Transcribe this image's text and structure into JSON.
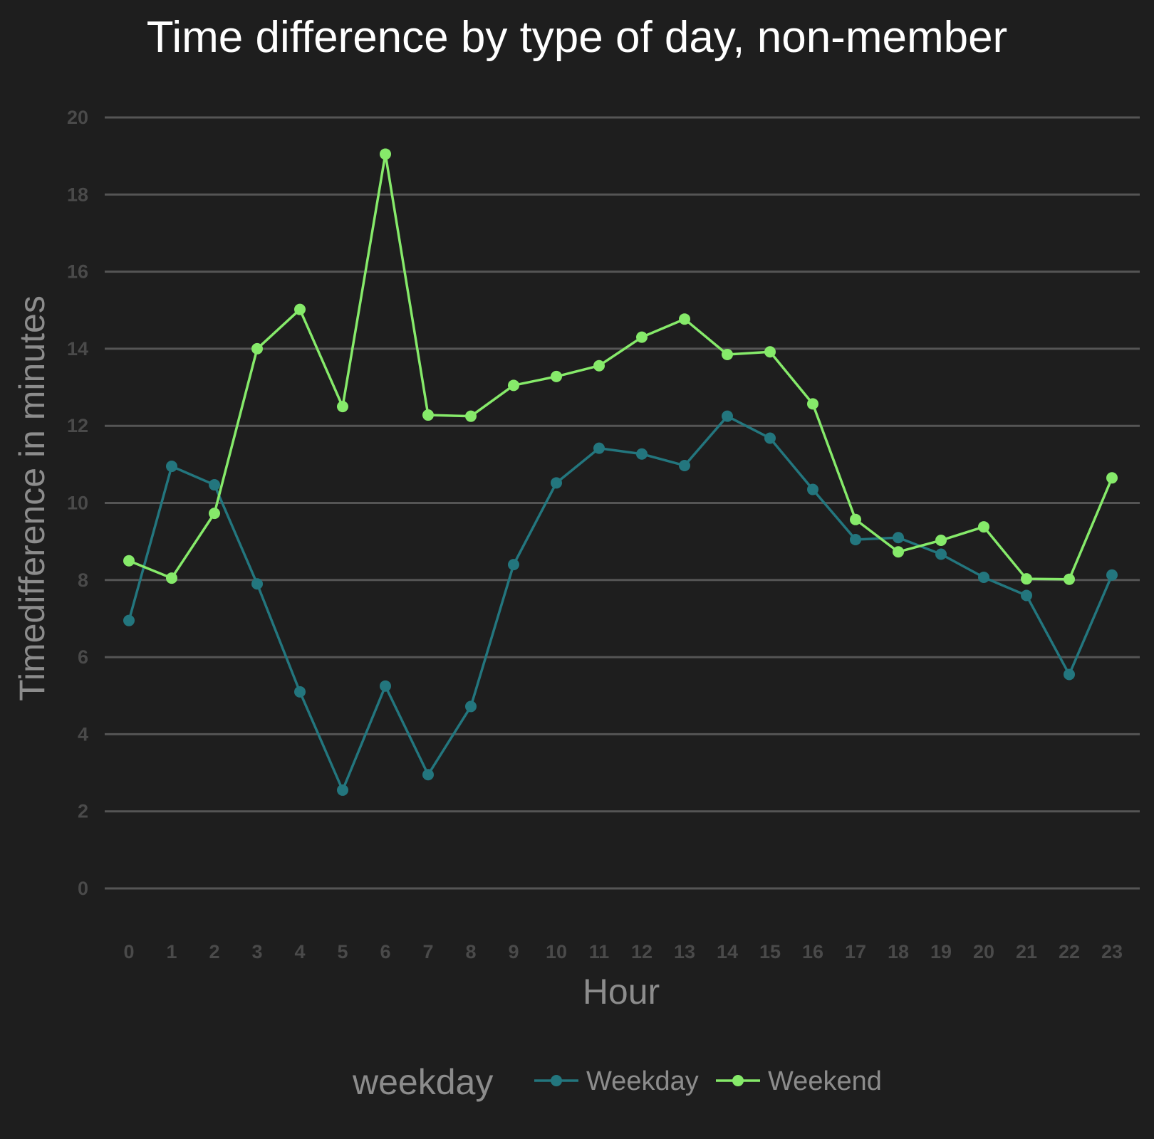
{
  "chart_data": {
    "type": "line",
    "title": "Time difference by type of day, non-member",
    "xlabel": "Hour",
    "ylabel": "Timedifference in minutes",
    "x": [
      0,
      1,
      2,
      3,
      4,
      5,
      6,
      7,
      8,
      9,
      10,
      11,
      12,
      13,
      14,
      15,
      16,
      17,
      18,
      19,
      20,
      21,
      22,
      23
    ],
    "x_tick_labels": [
      "0",
      "1",
      "2",
      "3",
      "4",
      "5",
      "6",
      "7",
      "8",
      "9",
      "10",
      "11",
      "12",
      "13",
      "14",
      "15",
      "16",
      "17",
      "18",
      "19",
      "20",
      "21",
      "22",
      "23"
    ],
    "ylim": [
      0,
      20
    ],
    "y_ticks": [
      0,
      2,
      4,
      6,
      8,
      10,
      12,
      14,
      16,
      18,
      20
    ],
    "y_tick_labels": [
      "0",
      "2",
      "4",
      "6",
      "8",
      "10",
      "12",
      "14",
      "16",
      "18",
      "20"
    ],
    "grid": true,
    "legend": {
      "title": "weekday",
      "position": "bottom"
    },
    "series": [
      {
        "name": "Weekday",
        "color": "#23767e",
        "values": [
          6.95,
          10.95,
          10.47,
          7.9,
          5.1,
          2.55,
          5.25,
          2.95,
          4.72,
          8.4,
          10.52,
          11.42,
          11.27,
          10.97,
          12.25,
          11.68,
          10.35,
          9.05,
          9.1,
          8.67,
          8.07,
          7.6,
          5.55,
          8.13
        ]
      },
      {
        "name": "Weekend",
        "color": "#86ea6a",
        "values": [
          8.5,
          8.05,
          9.73,
          14.0,
          15.02,
          12.5,
          19.05,
          12.28,
          12.25,
          13.05,
          13.28,
          13.56,
          14.3,
          14.77,
          13.85,
          13.92,
          12.57,
          9.57,
          8.73,
          9.03,
          9.38,
          8.03,
          8.02,
          10.65
        ]
      }
    ]
  }
}
